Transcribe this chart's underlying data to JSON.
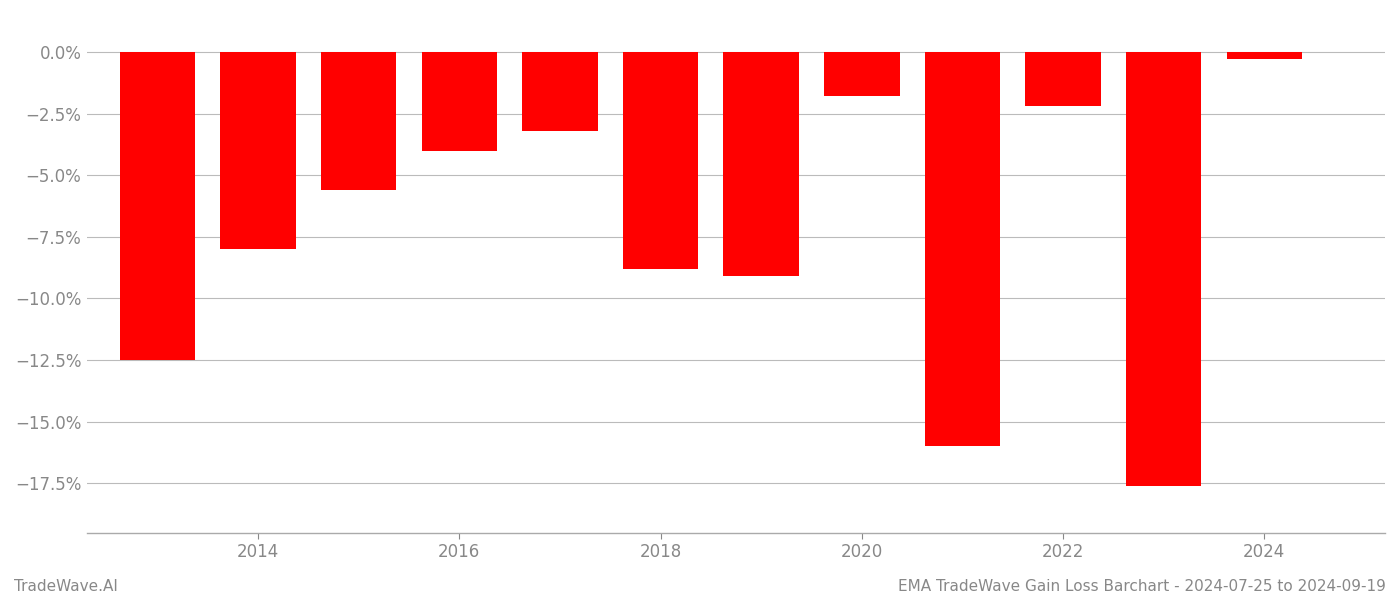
{
  "years": [
    2013,
    2014,
    2015,
    2016,
    2017,
    2018,
    2019,
    2020,
    2021,
    2022,
    2023,
    2024
  ],
  "values": [
    -12.5,
    -8.0,
    -5.6,
    -4.0,
    -3.2,
    -8.8,
    -9.1,
    -1.8,
    -16.0,
    -2.2,
    -17.6,
    -0.3
  ],
  "bar_color": "#ff0000",
  "background_color": "#ffffff",
  "grid_color": "#bbbbbb",
  "tick_color": "#888888",
  "ylim": [
    -19.5,
    1.5
  ],
  "yticks": [
    0.0,
    -2.5,
    -5.0,
    -7.5,
    -10.0,
    -12.5,
    -15.0,
    -17.5
  ],
  "footer_left": "TradeWave.AI",
  "footer_right": "EMA TradeWave Gain Loss Barchart - 2024-07-25 to 2024-09-19",
  "bar_width": 0.75,
  "xlim_left": 2012.3,
  "xlim_right": 2025.2,
  "xticks": [
    2014,
    2016,
    2018,
    2020,
    2022,
    2024
  ],
  "tick_fontsize": 12,
  "footer_fontsize": 11
}
